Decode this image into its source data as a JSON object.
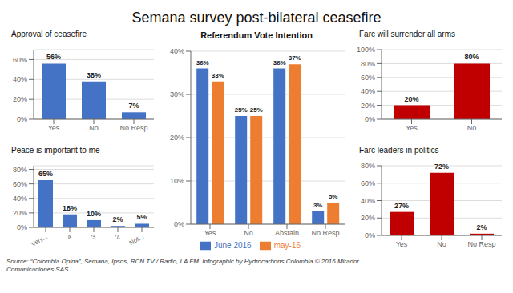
{
  "title": "Semana survey post-bilateral ceasefire",
  "annotations": [
    "Source: “Colombia Opina”, Semana, Ipsos, RCN TV / Radio, LA FM. Infographic by Hydrocarbons Colombia © 2016 Mirador\nComunicaciones SAS"
  ],
  "chart_data": [
    {
      "type": "bar",
      "title": "Approval of ceasefire",
      "categories": [
        "Yes",
        "No",
        "No Resp"
      ],
      "values": [
        56,
        38,
        7
      ],
      "value_labels": [
        "56%",
        "38%",
        "7%"
      ],
      "color": "#4472C4",
      "ylim": [
        0,
        70
      ],
      "yticks": [
        {
          "value": 0,
          "label": "0%"
        },
        {
          "value": 20,
          "label": "20%"
        },
        {
          "value": 40,
          "label": "40%"
        },
        {
          "value": 60,
          "label": "60%"
        }
      ],
      "grid": true,
      "data_labels": true
    },
    {
      "type": "bar",
      "title": "Peace is important to me",
      "categories": [
        "Very...",
        "4",
        "3",
        "2",
        "Not..."
      ],
      "values": [
        65,
        18,
        10,
        2,
        5
      ],
      "value_labels": [
        "65%",
        "18%",
        "10%",
        "2%",
        "5%"
      ],
      "color": "#4472C4",
      "ylim": [
        0,
        85
      ],
      "yticks": [
        {
          "value": 0,
          "label": "0%"
        },
        {
          "value": 20,
          "label": "20%"
        },
        {
          "value": 40,
          "label": "40%"
        },
        {
          "value": 60,
          "label": "60%"
        },
        {
          "value": 80,
          "label": "80%"
        }
      ],
      "grid": true,
      "data_labels": true
    },
    {
      "type": "bar",
      "title": "Referendum Vote Intention",
      "categories": [
        "Yes",
        "No",
        "Abstain",
        "No Resp"
      ],
      "series": [
        {
          "name": "June 2016",
          "color": "#4472C4",
          "values": [
            36,
            25,
            36,
            3
          ],
          "value_labels": [
            "36%",
            "25%",
            "36%",
            "3%"
          ]
        },
        {
          "name": "may-16",
          "color": "#ED7D31",
          "values": [
            33,
            25,
            37,
            5
          ],
          "value_labels": [
            "33%",
            "25%",
            "37%",
            "5%"
          ]
        }
      ],
      "ylim": [
        0,
        40
      ],
      "yticks": [
        {
          "value": 0,
          "label": "0%"
        },
        {
          "value": 10,
          "label": "10%"
        },
        {
          "value": 20,
          "label": "20%"
        },
        {
          "value": 30,
          "label": "30%"
        },
        {
          "value": 40,
          "label": "40%"
        }
      ],
      "grid": true,
      "data_labels": true,
      "legend": "bottom"
    },
    {
      "type": "bar",
      "title": "Farc will surrender all arms",
      "categories": [
        "Yes",
        "No"
      ],
      "values": [
        20,
        80
      ],
      "value_labels": [
        "20%",
        "80%"
      ],
      "color": "#C00000",
      "ylim": [
        0,
        100
      ],
      "yticks": [
        {
          "value": 0,
          "label": "0%"
        },
        {
          "value": 20,
          "label": "20%"
        },
        {
          "value": 40,
          "label": "40%"
        },
        {
          "value": 60,
          "label": "60%"
        },
        {
          "value": 80,
          "label": "80%"
        },
        {
          "value": 100,
          "label": "100%"
        }
      ],
      "grid": true,
      "data_labels": true
    },
    {
      "type": "bar",
      "title": "Farc leaders in politics",
      "categories": [
        "Yes",
        "No",
        "No Resp"
      ],
      "values": [
        27,
        72,
        2
      ],
      "value_labels": [
        "27%",
        "72%",
        "2%"
      ],
      "color": "#C00000",
      "ylim": [
        0,
        80
      ],
      "yticks": [
        {
          "value": 0,
          "label": "0%"
        },
        {
          "value": 20,
          "label": "20%"
        },
        {
          "value": 40,
          "label": "40%"
        },
        {
          "value": 60,
          "label": "60%"
        },
        {
          "value": 80,
          "label": "80%"
        }
      ],
      "grid": true,
      "data_labels": true
    }
  ]
}
